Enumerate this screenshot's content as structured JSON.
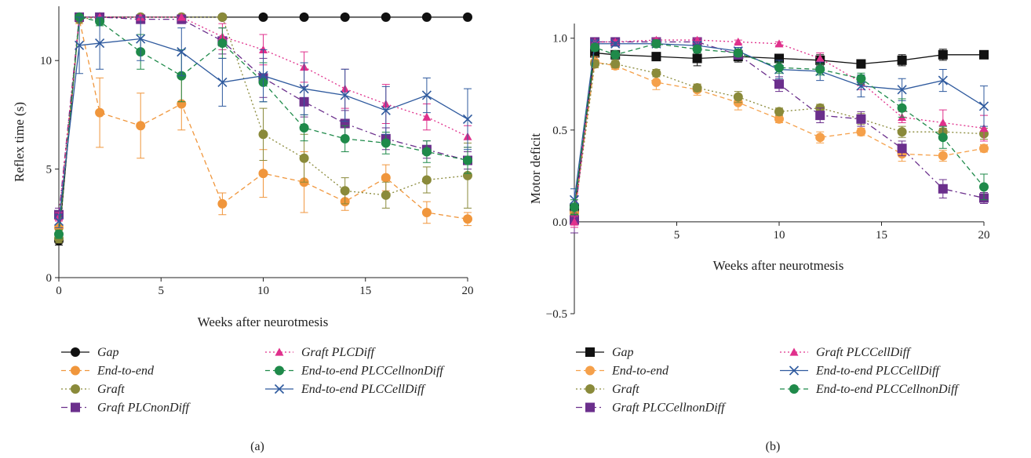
{
  "chart_data": [
    {
      "type": "line",
      "panel_label": "(a)",
      "xlabel": "Weeks after neurotmesis",
      "ylabel": "Reflex time (s)",
      "xlim": [
        0,
        20
      ],
      "ylim": [
        0,
        12.5
      ],
      "xticks": [
        0,
        5,
        10,
        15,
        20
      ],
      "yticks": [
        0,
        5,
        10
      ],
      "x": [
        0,
        1,
        2,
        4,
        6,
        8,
        10,
        12,
        14,
        16,
        18,
        20
      ],
      "grid": false,
      "legend_position": "below",
      "series": [
        {
          "name": "Gap",
          "color": "#111111",
          "marker": "circle",
          "dash": "solid",
          "values": [
            1.7,
            12,
            12,
            12,
            12,
            12,
            12,
            12,
            12,
            12,
            12,
            12
          ],
          "errors": [
            0.2,
            0,
            0,
            0,
            0,
            0,
            0,
            0,
            0,
            0,
            0,
            0
          ]
        },
        {
          "name": "End-to-end",
          "color": "#f0963c",
          "marker": "circle",
          "dash": "dashed",
          "values": [
            2.3,
            11.9,
            7.6,
            7.0,
            8.0,
            3.4,
            4.8,
            4.4,
            3.5,
            4.6,
            3.0,
            2.7
          ],
          "errors": [
            0.3,
            0.2,
            1.6,
            1.5,
            1.2,
            0.5,
            1.1,
            1.4,
            0.4,
            0.6,
            0.5,
            0.3
          ]
        },
        {
          "name": "Graft",
          "color": "#8a8a3a",
          "marker": "circle",
          "dash": "dotted",
          "values": [
            1.8,
            11.9,
            12,
            12,
            12,
            12,
            6.6,
            5.5,
            4.0,
            3.8,
            4.5,
            4.7
          ],
          "errors": [
            0.2,
            0,
            0,
            0,
            0,
            0,
            1.2,
            1.1,
            0.6,
            0.6,
            0.6,
            1.5
          ]
        },
        {
          "name": "Graft PLCnonDiff",
          "color": "#6b2f8c",
          "marker": "square",
          "dash": "dashdot",
          "values": [
            2.9,
            12,
            12,
            11.9,
            11.9,
            10.9,
            9.2,
            8.1,
            7.1,
            6.4,
            5.9,
            5.4
          ],
          "errors": [
            0.3,
            0,
            0,
            0.1,
            0.2,
            0.6,
            0.9,
            0.7,
            0.6,
            0.5,
            0.4,
            0.4
          ]
        },
        {
          "name": "Graft PLCDiff",
          "color": "#e0308c",
          "marker": "triangle",
          "dash": "dotted",
          "values": [
            2.8,
            12,
            12,
            12,
            12,
            11.1,
            10.5,
            9.7,
            8.7,
            8.0,
            7.4,
            6.5
          ],
          "errors": [
            0.2,
            0,
            0,
            0,
            0,
            0.6,
            0.7,
            0.7,
            0.9,
            0.9,
            0.6,
            0.5
          ]
        },
        {
          "name": "End-to-end PLCCellnonDiff",
          "color": "#1f8a4a",
          "marker": "circle",
          "dash": "dashed",
          "values": [
            2.0,
            12,
            11.8,
            10.4,
            9.3,
            10.8,
            9.0,
            6.9,
            6.4,
            6.2,
            5.8,
            5.4
          ],
          "errors": [
            0.2,
            0,
            0.2,
            0.8,
            1.2,
            0.7,
            0.9,
            0.6,
            0.6,
            0.5,
            0.5,
            0.6
          ]
        },
        {
          "name": "End-to-end PLCCellDiff",
          "color": "#2f5a9e",
          "marker": "x",
          "dash": "solid",
          "values": [
            2.6,
            10.7,
            10.8,
            11.0,
            10.4,
            9.0,
            9.3,
            8.7,
            8.4,
            7.7,
            8.4,
            7.3
          ],
          "errors": [
            0.3,
            1.3,
            1.2,
            1.0,
            1.1,
            1.1,
            1.2,
            1.2,
            1.2,
            1.1,
            0.8,
            1.4
          ]
        }
      ]
    },
    {
      "type": "line",
      "panel_label": "(b)",
      "xlabel": "Weeks after neurotmesis",
      "ylabel": "Motor deficit",
      "xlim": [
        0,
        20
      ],
      "ylim": [
        -0.5,
        1.08
      ],
      "xticks": [
        5,
        10,
        15,
        20
      ],
      "yticks": [
        -0.5,
        0.0,
        0.5,
        1.0
      ],
      "yticklabels": [
        "−0.5",
        "0.0",
        "0.5",
        "1.0"
      ],
      "x": [
        0,
        1,
        2,
        4,
        6,
        8,
        10,
        12,
        14,
        16,
        18,
        20
      ],
      "grid": false,
      "legend_position": "below",
      "series": [
        {
          "name": "Gap",
          "color": "#111111",
          "marker": "square",
          "dash": "solid",
          "values": [
            0.07,
            0.92,
            0.91,
            0.9,
            0.89,
            0.9,
            0.89,
            0.88,
            0.86,
            0.88,
            0.91,
            0.91
          ],
          "errors": [
            0.03,
            0.02,
            0.02,
            0.02,
            0.04,
            0.03,
            0.02,
            0.03,
            0.02,
            0.03,
            0.03,
            0.02
          ]
        },
        {
          "name": "End-to-end",
          "color": "#f5a04a",
          "marker": "circle",
          "dash": "dashed",
          "values": [
            0.05,
            0.87,
            0.85,
            0.76,
            0.72,
            0.65,
            0.56,
            0.46,
            0.49,
            0.37,
            0.36,
            0.4
          ],
          "errors": [
            0.05,
            0.03,
            0.02,
            0.04,
            0.03,
            0.04,
            0.02,
            0.03,
            0.02,
            0.04,
            0.03,
            0.02
          ]
        },
        {
          "name": "Graft",
          "color": "#8a8a3a",
          "marker": "circle",
          "dash": "dotted",
          "values": [
            0.03,
            0.86,
            0.86,
            0.81,
            0.73,
            0.68,
            0.6,
            0.62,
            0.56,
            0.49,
            0.49,
            0.48
          ],
          "errors": [
            0.04,
            0.02,
            0.02,
            0.02,
            0.02,
            0.03,
            0.02,
            0.02,
            0.03,
            0.03,
            0.02,
            0.03
          ]
        },
        {
          "name": "Graft PLCCellnonDiff",
          "color": "#6b2f8c",
          "marker": "square",
          "dash": "dashdot",
          "values": [
            0.01,
            0.98,
            0.98,
            0.98,
            0.98,
            0.91,
            0.75,
            0.58,
            0.56,
            0.4,
            0.18,
            0.13
          ],
          "errors": [
            0.07,
            0.02,
            0.01,
            0.01,
            0.02,
            0.02,
            0.04,
            0.04,
            0.04,
            0.04,
            0.05,
            0.03
          ]
        },
        {
          "name": "Graft PLCCellDiff",
          "color": "#e0308c",
          "marker": "triangle",
          "dash": "dotted",
          "values": [
            0.0,
            0.98,
            0.98,
            0.99,
            0.99,
            0.98,
            0.97,
            0.89,
            0.76,
            0.57,
            0.54,
            0.51
          ],
          "errors": [
            0.03,
            0.01,
            0.01,
            0.01,
            0.01,
            0.01,
            0.01,
            0.03,
            0.04,
            0.03,
            0.07,
            0.07
          ]
        },
        {
          "name": "End-to-end PLCCellDiff",
          "color": "#2f5a9e",
          "marker": "x",
          "dash": "solid",
          "values": [
            0.12,
            0.97,
            0.97,
            0.97,
            0.96,
            0.93,
            0.83,
            0.82,
            0.74,
            0.72,
            0.77,
            0.63
          ],
          "errors": [
            0.06,
            0.02,
            0.01,
            0.02,
            0.02,
            0.02,
            0.05,
            0.05,
            0.06,
            0.06,
            0.06,
            0.11
          ]
        },
        {
          "name": "End-to-end PLCCellnonDiff",
          "color": "#1f8a4a",
          "marker": "circle",
          "dash": "dashed",
          "values": [
            0.08,
            0.95,
            0.91,
            0.97,
            0.94,
            0.92,
            0.84,
            0.83,
            0.78,
            0.62,
            0.46,
            0.19
          ],
          "errors": [
            0.04,
            0.02,
            0.02,
            0.02,
            0.02,
            0.02,
            0.03,
            0.03,
            0.03,
            0.05,
            0.06,
            0.07
          ]
        }
      ]
    }
  ]
}
